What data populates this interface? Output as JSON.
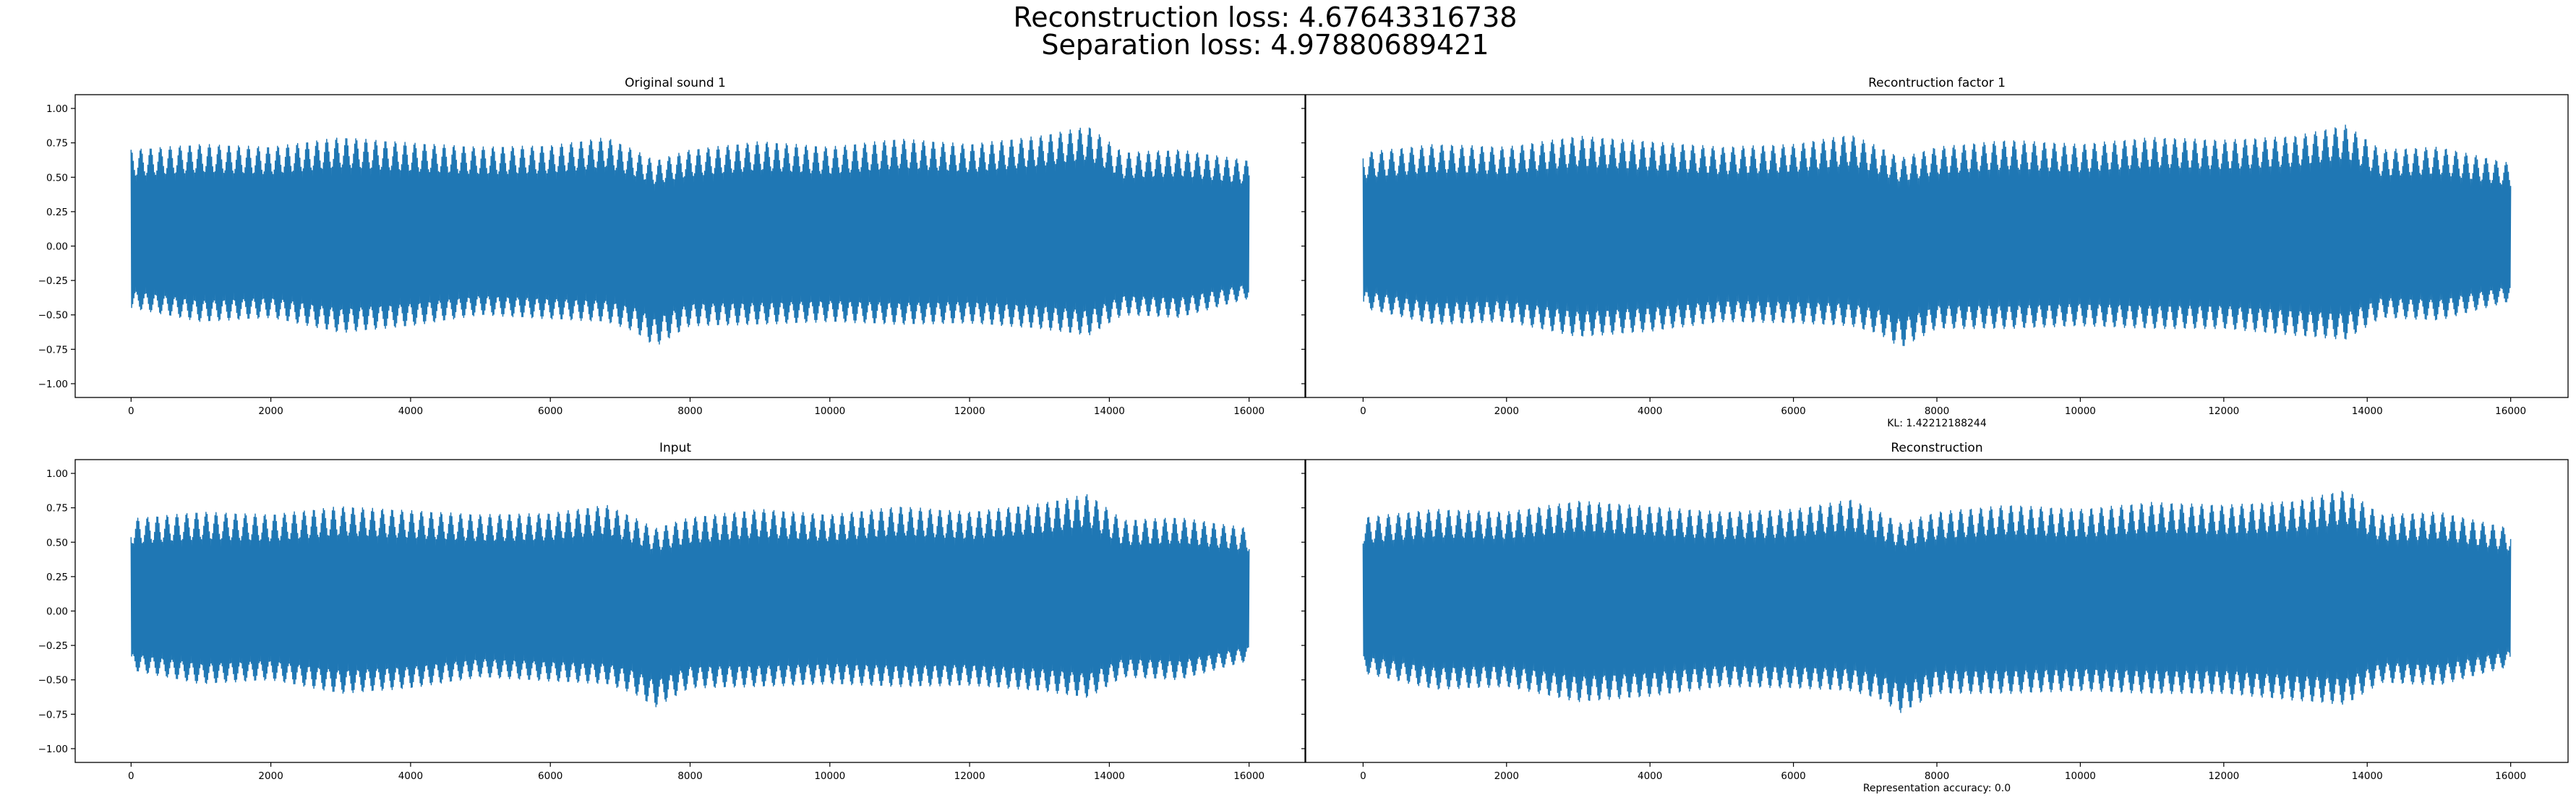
{
  "figure": {
    "title_line1": "Reconstruction loss: 4.67643316738",
    "title_line2": "Separation loss: 4.97880689421"
  },
  "colors": {
    "series": "#1f77b4",
    "axes": "#000000",
    "background": "#ffffff"
  },
  "chart_data": [
    {
      "type": "line",
      "title": "Original sound 1",
      "xlabel": "",
      "ylabel": "",
      "xlim": [
        -800,
        16800
      ],
      "ylim": [
        -1.1,
        1.1
      ],
      "xticks": [
        0,
        2000,
        4000,
        6000,
        8000,
        10000,
        12000,
        14000,
        16000
      ],
      "yticks": [
        1.0,
        0.75,
        0.5,
        0.25,
        0.0,
        -0.25,
        -0.5,
        -0.75,
        -1.0
      ],
      "ytick_labels": [
        "1.00",
        "0.75",
        "0.50",
        "0.25",
        "0.00",
        "−0.25",
        "−0.50",
        "−0.75",
        "−1.00"
      ],
      "grid": false,
      "n_samples": 16000,
      "envelope": {
        "x": [
          0,
          1000,
          2000,
          3000,
          4000,
          5000,
          6000,
          6800,
          7200,
          7500,
          8000,
          9000,
          10000,
          11000,
          12000,
          13000,
          13700,
          14200,
          15000,
          16000
        ],
        "upper": [
          0.7,
          0.74,
          0.72,
          0.79,
          0.75,
          0.72,
          0.73,
          0.79,
          0.7,
          0.62,
          0.7,
          0.76,
          0.72,
          0.78,
          0.74,
          0.8,
          0.87,
          0.68,
          0.7,
          0.62
        ],
        "lower": [
          -0.45,
          -0.55,
          -0.52,
          -0.63,
          -0.58,
          -0.5,
          -0.53,
          -0.55,
          -0.62,
          -0.73,
          -0.58,
          -0.57,
          -0.55,
          -0.57,
          -0.56,
          -0.6,
          -0.65,
          -0.5,
          -0.52,
          -0.38
        ]
      }
    },
    {
      "type": "line",
      "title": "Recontruction factor 1",
      "xlabel": "KL: 1.42212188244",
      "ylabel": "",
      "xlim": [
        -800,
        16800
      ],
      "ylim": [
        -1.1,
        1.1
      ],
      "xticks": [
        0,
        2000,
        4000,
        6000,
        8000,
        10000,
        12000,
        14000,
        16000
      ],
      "yticks": [
        1.0,
        0.75,
        0.5,
        0.25,
        0.0,
        -0.25,
        -0.5,
        -0.75,
        -1.0
      ],
      "ytick_labels": [],
      "grid": false,
      "n_samples": 16000,
      "envelope": {
        "x": [
          0,
          1000,
          2000,
          3000,
          4000,
          5000,
          6000,
          6800,
          7200,
          7500,
          8000,
          9000,
          10000,
          11000,
          12000,
          13000,
          13700,
          14200,
          15000,
          16000
        ],
        "upper": [
          0.68,
          0.74,
          0.72,
          0.8,
          0.76,
          0.72,
          0.74,
          0.81,
          0.72,
          0.64,
          0.72,
          0.77,
          0.74,
          0.79,
          0.77,
          0.8,
          0.88,
          0.7,
          0.72,
          0.6
        ],
        "lower": [
          -0.45,
          -0.57,
          -0.55,
          -0.66,
          -0.62,
          -0.55,
          -0.56,
          -0.58,
          -0.64,
          -0.74,
          -0.6,
          -0.6,
          -0.58,
          -0.6,
          -0.6,
          -0.65,
          -0.68,
          -0.52,
          -0.54,
          -0.4
        ]
      }
    },
    {
      "type": "line",
      "title": "Input",
      "xlabel": "",
      "ylabel": "",
      "xlim": [
        -800,
        16800
      ],
      "ylim": [
        -1.1,
        1.1
      ],
      "xticks": [
        0,
        2000,
        4000,
        6000,
        8000,
        10000,
        12000,
        14000,
        16000
      ],
      "yticks": [
        1.0,
        0.75,
        0.5,
        0.25,
        0.0,
        -0.25,
        -0.5,
        -0.75,
        -1.0
      ],
      "ytick_labels": [
        "1.00",
        "0.75",
        "0.50",
        "0.25",
        "0.00",
        "−0.25",
        "−0.50",
        "−0.75",
        "−1.00"
      ],
      "grid": false,
      "n_samples": 16000,
      "envelope": {
        "x": [
          0,
          1000,
          2000,
          3000,
          4000,
          5000,
          6000,
          6800,
          7200,
          7500,
          8000,
          9000,
          10000,
          11000,
          12000,
          13000,
          13700,
          14200,
          15000,
          16000
        ],
        "upper": [
          0.67,
          0.72,
          0.7,
          0.76,
          0.73,
          0.7,
          0.71,
          0.77,
          0.68,
          0.6,
          0.68,
          0.74,
          0.7,
          0.76,
          0.72,
          0.78,
          0.85,
          0.66,
          0.68,
          0.6
        ],
        "lower": [
          -0.43,
          -0.53,
          -0.5,
          -0.6,
          -0.56,
          -0.48,
          -0.51,
          -0.53,
          -0.6,
          -0.7,
          -0.56,
          -0.55,
          -0.53,
          -0.55,
          -0.54,
          -0.58,
          -0.63,
          -0.48,
          -0.5,
          -0.36
        ]
      }
    },
    {
      "type": "line",
      "title": "Reconstruction",
      "xlabel": "Representation accuracy: 0.0",
      "ylabel": "",
      "xlim": [
        -800,
        16800
      ],
      "ylim": [
        -1.1,
        1.1
      ],
      "xticks": [
        0,
        2000,
        4000,
        6000,
        8000,
        10000,
        12000,
        14000,
        16000
      ],
      "yticks": [
        1.0,
        0.75,
        0.5,
        0.25,
        0.0,
        -0.25,
        -0.5,
        -0.75,
        -1.0
      ],
      "ytick_labels": [],
      "grid": false,
      "n_samples": 16000,
      "envelope": {
        "x": [
          0,
          1000,
          2000,
          3000,
          4000,
          5000,
          6000,
          6800,
          7200,
          7500,
          8000,
          9000,
          10000,
          11000,
          12000,
          13000,
          13700,
          14200,
          15000,
          16000
        ],
        "upper": [
          0.68,
          0.74,
          0.72,
          0.8,
          0.76,
          0.72,
          0.74,
          0.81,
          0.72,
          0.64,
          0.72,
          0.77,
          0.74,
          0.79,
          0.77,
          0.8,
          0.88,
          0.7,
          0.72,
          0.6
        ],
        "lower": [
          -0.45,
          -0.57,
          -0.55,
          -0.66,
          -0.62,
          -0.55,
          -0.56,
          -0.58,
          -0.64,
          -0.74,
          -0.6,
          -0.6,
          -0.58,
          -0.6,
          -0.6,
          -0.65,
          -0.68,
          -0.52,
          -0.54,
          -0.4
        ]
      }
    }
  ]
}
